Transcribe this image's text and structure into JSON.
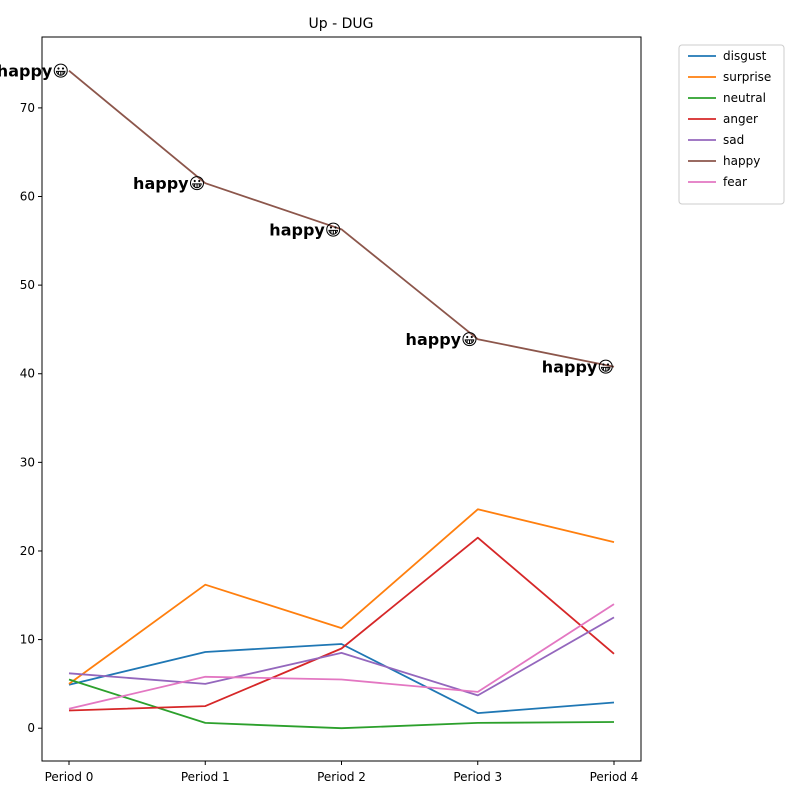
{
  "chart_data": {
    "type": "line",
    "title": "Up - DUG",
    "xlabel": "",
    "ylabel": "",
    "categories": [
      "Period 0",
      "Period 1",
      "Period 2",
      "Period 3",
      "Period 4"
    ],
    "ylim": [
      -3.7,
      78
    ],
    "yticks": [
      0,
      10,
      20,
      30,
      40,
      50,
      60,
      70
    ],
    "grid": false,
    "legend_position": "outside-top-right",
    "series": [
      {
        "name": "disgust",
        "color": "#1f77b4",
        "values": [
          4.9,
          8.6,
          9.5,
          1.7,
          2.9
        ]
      },
      {
        "name": "surprise",
        "color": "#ff7f0e",
        "values": [
          5.0,
          16.2,
          11.3,
          24.7,
          21.0
        ]
      },
      {
        "name": "neutral",
        "color": "#2ca02c",
        "values": [
          5.5,
          0.6,
          0.0,
          0.6,
          0.7
        ]
      },
      {
        "name": "anger",
        "color": "#d62728",
        "values": [
          2.0,
          2.5,
          9.0,
          21.5,
          8.4
        ]
      },
      {
        "name": "sad",
        "color": "#9467bd",
        "values": [
          6.2,
          5.0,
          8.5,
          3.7,
          12.5
        ]
      },
      {
        "name": "happy",
        "color": "#8c564b",
        "values": [
          74.2,
          61.5,
          56.3,
          43.9,
          40.8
        ]
      },
      {
        "name": "fear",
        "color": "#e377c2",
        "values": [
          2.2,
          5.8,
          5.5,
          4.1,
          14.0
        ]
      }
    ],
    "annotations": [
      {
        "x": 0,
        "y": 74.2,
        "text": "happy😀"
      },
      {
        "x": 1,
        "y": 61.5,
        "text": "happy😀"
      },
      {
        "x": 2,
        "y": 56.3,
        "text": "happy😀"
      },
      {
        "x": 3,
        "y": 43.9,
        "text": "happy😀"
      },
      {
        "x": 4,
        "y": 40.8,
        "text": "happy😀"
      }
    ]
  }
}
